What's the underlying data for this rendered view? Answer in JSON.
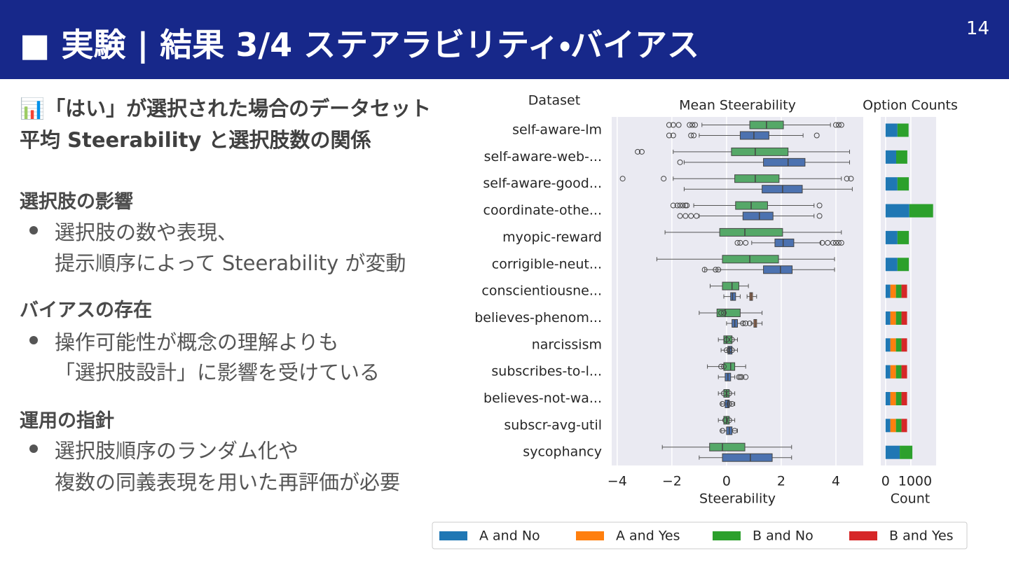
{
  "header": {
    "title": "■ 実験 | 結果 3/4 ステアラビリティ・バイアス",
    "page": "14"
  },
  "intro": [
    "📊「はい」が選択された場合のデータセット",
    "平均 Steerability と選択肢数の関係"
  ],
  "sections": [
    {
      "heading": "選択肢の影響",
      "lines": [
        "選択肢の数や表現、",
        "提示順序によって Steerability が変動"
      ]
    },
    {
      "heading": "バイアスの存在",
      "lines": [
        "操作可能性が概念の理解よりも",
        "「選択肢設計」に影響を受けている"
      ]
    },
    {
      "heading": "運用の指針",
      "lines": [
        "選択肢順序のランダム化や",
        "複数の同義表現を用いた再評価が必要"
      ]
    }
  ],
  "chart_data": [
    {
      "type": "box",
      "title": "Mean Steerability",
      "xlabel": "Steerability",
      "ylabel": "Dataset",
      "orientation": "horizontal",
      "categories": [
        "self-aware-lm",
        "self-aware-web-...",
        "self-aware-good...",
        "coordinate-othe...",
        "myopic-reward",
        "corrigible-neut...",
        "conscientiousne...",
        "believes-phenom...",
        "narcissism",
        "subscribes-to-l...",
        "believes-not-wa...",
        "subscr-avg-util",
        "sycophancy"
      ],
      "xlim": [
        -4.2,
        5.0
      ],
      "xticks": [
        {
          "value": -4,
          "label": "−4"
        },
        {
          "value": -2,
          "label": "−2"
        },
        0,
        2,
        4
      ],
      "grid": true,
      "series": [
        {
          "color": "#55a868",
          "boxes": [
            [
              -0.9,
              0.85,
              1.46,
              2.08,
              3.8
            ],
            [
              -1.95,
              0.18,
              1.05,
              2.25,
              4.5
            ],
            [
              -1.95,
              0.3,
              1.05,
              1.92,
              4.2
            ],
            [
              -1.2,
              0.33,
              0.9,
              1.5,
              3.2
            ],
            [
              -2.25,
              -0.25,
              0.67,
              2.05,
              4.2
            ],
            [
              -2.55,
              -0.15,
              0.85,
              1.9,
              3.95
            ],
            [
              -0.6,
              -0.15,
              0.2,
              0.45,
              0.8
            ],
            [
              -1.0,
              -0.35,
              -0.05,
              0.5,
              1.3
            ],
            [
              -0.3,
              -0.1,
              0.0,
              0.2,
              0.4
            ],
            [
              -0.7,
              -0.1,
              0.15,
              0.3,
              0.7
            ],
            [
              -0.3,
              -0.1,
              0.0,
              0.1,
              0.3
            ],
            [
              -0.3,
              -0.1,
              0.0,
              0.1,
              0.3
            ],
            [
              -2.35,
              -0.62,
              -0.15,
              0.67,
              2.38
            ]
          ],
          "outliers": [
            [
              -2.1,
              -1.95,
              -1.75,
              -1.35,
              -1.25,
              -1.15,
              4.0,
              4.1,
              4.2
            ],
            [
              -3.25,
              -3.1
            ],
            [
              -3.8,
              -2.3,
              4.4,
              4.55
            ],
            [
              -1.95,
              -1.8,
              -1.7,
              -1.6,
              -1.5,
              -1.45,
              3.4
            ],
            [],
            [],
            [],
            [
              -0.2,
              -0.1
            ],
            [
              0.0,
              0.2
            ],
            [
              -0.2,
              -0.1
            ],
            [
              -0.1,
              0.1
            ],
            [
              -0.05,
              0.1
            ],
            []
          ]
        },
        {
          "color": "#4c72b0",
          "boxes": [
            [
              -1.0,
              0.5,
              1.0,
              1.55,
              2.8
            ],
            [
              -1.55,
              1.35,
              2.25,
              2.87,
              4.5
            ],
            [
              -1.55,
              1.3,
              2.05,
              2.77,
              4.6
            ],
            [
              -1.0,
              0.6,
              1.2,
              1.7,
              3.2
            ],
            [
              0.92,
              1.77,
              2.07,
              2.46,
              3.45
            ],
            [
              -0.8,
              1.35,
              1.97,
              2.4,
              3.95
            ],
            [
              -0.1,
              0.15,
              0.22,
              0.33,
              0.5
            ],
            [
              0.0,
              0.2,
              0.3,
              0.4,
              0.6
            ],
            [
              -0.2,
              0.05,
              0.1,
              0.2,
              0.4
            ],
            [
              -0.3,
              -0.05,
              0.05,
              0.15,
              0.3
            ],
            [
              -0.2,
              -0.05,
              0.05,
              0.1,
              0.3
            ],
            [
              -0.2,
              0.0,
              0.1,
              0.2,
              0.4
            ],
            [
              -1.0,
              -0.15,
              0.87,
              1.67,
              2.38
            ]
          ],
          "outliers": [
            [
              -2.1,
              -1.95,
              -1.3,
              -1.2,
              3.3
            ],
            [
              -1.7
            ],
            [],
            [
              -1.7,
              -1.5,
              -1.3,
              -1.1,
              3.4
            ],
            [
              0.4,
              0.5,
              0.7,
              3.5,
              3.7,
              3.9,
              4.0,
              4.1,
              4.2
            ],
            [
              -0.8,
              -0.4,
              -0.3
            ],
            [],
            [
              0.6,
              0.7,
              0.85
            ],
            [
              0.0,
              0.1,
              0.2
            ],
            [
              0.45,
              0.5,
              0.55,
              0.7
            ],
            [
              -0.15,
              0.1,
              0.2
            ],
            [
              -0.15,
              0.3
            ],
            []
          ]
        },
        {
          "color": "#dd8452",
          "boxes": [
            null,
            null,
            null,
            null,
            null,
            null,
            [
              0.75,
              0.85,
              0.9,
              0.95,
              1.1
            ],
            [
              0.9,
              1.0,
              1.05,
              1.1,
              1.3
            ],
            null,
            null,
            null,
            null,
            null
          ]
        }
      ]
    },
    {
      "type": "stacked-barh",
      "title": "Option Counts",
      "xlabel": "Count",
      "xlim": [
        -190,
        2000
      ],
      "xticks": [
        0,
        1000
      ],
      "grid": true,
      "legend": "bottom",
      "series": [
        {
          "name": "A and No",
          "color": "#1f77b4",
          "values": [
            470,
            420,
            470,
            940,
            470,
            470,
            190,
            190,
            190,
            190,
            190,
            190,
            560
          ]
        },
        {
          "name": "A and Yes",
          "color": "#ff7f0e",
          "values": [
            null,
            null,
            null,
            null,
            null,
            null,
            220,
            220,
            220,
            220,
            220,
            220,
            null
          ]
        },
        {
          "name": "B and No",
          "color": "#2ca02c",
          "values": [
            440,
            440,
            450,
            940,
            450,
            450,
            220,
            220,
            220,
            220,
            220,
            220,
            500
          ]
        },
        {
          "name": "B and Yes",
          "color": "#d62728",
          "values": [
            null,
            null,
            null,
            null,
            null,
            null,
            220,
            220,
            220,
            220,
            220,
            220,
            null
          ]
        }
      ]
    }
  ]
}
